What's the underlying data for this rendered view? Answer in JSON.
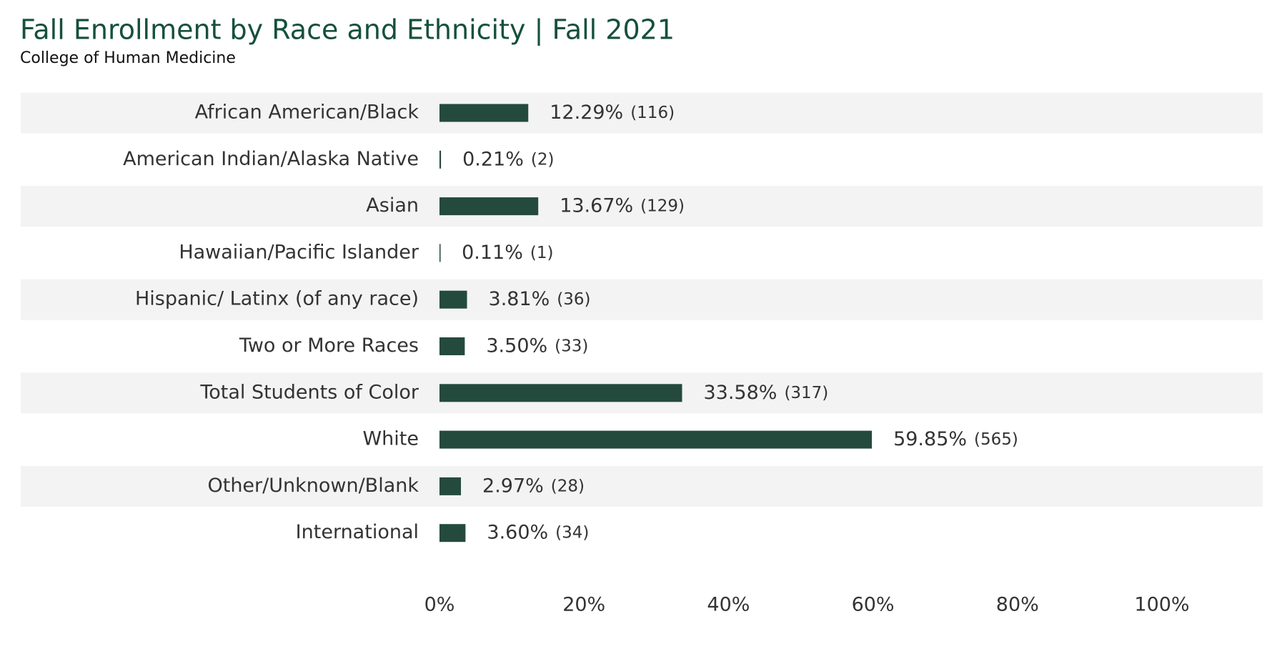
{
  "chart_data": {
    "type": "barh",
    "title": "Fall Enrollment by Race and Ethnicity | Fall 2021",
    "subtitle": "College of Human Medicine",
    "categories": [
      "African American/Black",
      "American Indian/Alaska Native",
      "Asian",
      "Hawaiian/Pacific Islander",
      "Hispanic/ Latinx (of any race)",
      "Two or More Races",
      "Total Students of Color",
      "White",
      "Other/Unknown/Blank",
      "International"
    ],
    "values": [
      12.29,
      0.21,
      13.67,
      0.11,
      3.81,
      3.5,
      33.58,
      59.85,
      2.97,
      3.6
    ],
    "value_labels": [
      "12.29%",
      "0.21%",
      "13.67%",
      "0.11%",
      "3.81%",
      "3.50%",
      "33.58%",
      "59.85%",
      "2.97%",
      "3.60%"
    ],
    "count_labels": [
      "(116)",
      "(2)",
      "(129)",
      "(1)",
      "(36)",
      "(33)",
      "(317)",
      "(565)",
      "(28)",
      "(34)"
    ],
    "color": "#244a3e",
    "xlim": [
      0,
      114
    ],
    "xticks": [
      {
        "value": 0,
        "label": "0%"
      },
      {
        "value": 20,
        "label": "20%"
      },
      {
        "value": 40,
        "label": "40%"
      },
      {
        "value": 60,
        "label": "60%"
      },
      {
        "value": 80,
        "label": "80%"
      },
      {
        "value": 100,
        "label": "100%"
      }
    ]
  }
}
